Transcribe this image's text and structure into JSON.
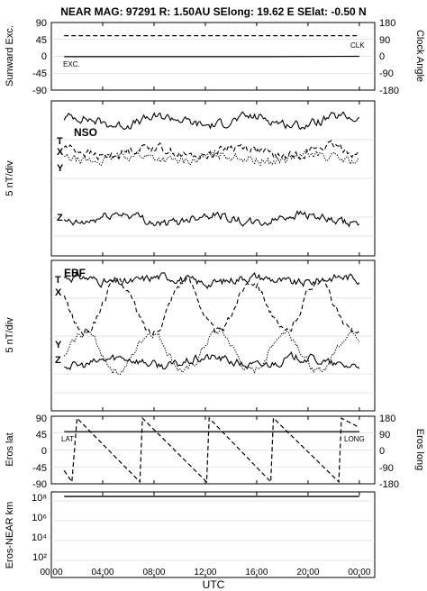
{
  "chart_data": [
    {
      "type": "line",
      "title": "NEAR MAG: 97291  R: 1.50AU  SElong:   19.62 E  SElat:   -0.50 N",
      "panel": "angles",
      "ylabel_left": "Sunward Exc.",
      "ylabel_right": "Clock Angle",
      "yticks_left": [
        "90",
        "45",
        "0",
        "-45",
        "-90"
      ],
      "yticks_right": [
        "180",
        "90",
        "0",
        "-90",
        "-180"
      ],
      "ylim": [
        -90,
        90
      ],
      "grid": true,
      "series": [
        {
          "name": "CLK",
          "style": "dashed",
          "x": [
            1,
            24
          ],
          "y": [
            55,
            55
          ]
        },
        {
          "name": "EXC.",
          "style": "solid",
          "x": [
            1,
            17,
            24
          ],
          "y": [
            -1,
            -1,
            0
          ]
        }
      ]
    },
    {
      "type": "line",
      "panel": "nso",
      "label": "NSO",
      "ylabel": "5 nT/div",
      "grid": true,
      "series": [
        {
          "name": "T",
          "style": "solid",
          "base": 22,
          "amp": 2.5
        },
        {
          "name": "X",
          "style": "dashed",
          "base": 13,
          "amp": 3.0
        },
        {
          "name": "Y",
          "style": "dotted",
          "base": 11,
          "amp": 2.0
        },
        {
          "name": "Z",
          "style": "solid",
          "base": -7,
          "amp": 3.0
        }
      ]
    },
    {
      "type": "line",
      "panel": "ebf",
      "label": "EBF",
      "ylabel": "5 nT/div",
      "grid": true,
      "series": [
        {
          "name": "T",
          "style": "solid",
          "base": 22,
          "amp": 2.0
        },
        {
          "name": "X",
          "style": "dashed",
          "base": 14,
          "amp": 8.0
        },
        {
          "name": "Y",
          "style": "dotted",
          "base": 0,
          "amp": 6.0
        },
        {
          "name": "Z",
          "style": "solid",
          "base": -3,
          "amp": 2.5
        }
      ]
    },
    {
      "type": "line",
      "panel": "eros",
      "ylabel_left": "Eros lat",
      "ylabel_right": "Eros long",
      "yticks_left": [
        "90",
        "45",
        "0",
        "-45",
        "-90"
      ],
      "yticks_right": [
        "180",
        "90",
        "0",
        "-90",
        "-180"
      ],
      "ylim": [
        -90,
        90
      ],
      "grid": true,
      "series": [
        {
          "name": "LAT",
          "style": "solid",
          "x": [
            1,
            24
          ],
          "y": [
            49,
            49
          ]
        },
        {
          "name": "LONG",
          "style": "dashed",
          "x": [
            1,
            1.6,
            2.0,
            6.9,
            7.1,
            12.1,
            12.3,
            17.1,
            17.3,
            22.4,
            22.6,
            24
          ],
          "y": [
            -55,
            -85,
            85,
            -85,
            85,
            -85,
            85,
            -85,
            85,
            -85,
            85,
            60
          ]
        }
      ]
    },
    {
      "type": "line",
      "panel": "distance",
      "ylabel": "Eros-NEAR km",
      "yscale": "log",
      "yticks": [
        "10⁸",
        "10⁶",
        "10⁴",
        "10²"
      ],
      "ylim_exp": [
        1,
        8.4
      ],
      "grid": true,
      "series": [
        {
          "name": "",
          "style": "solid",
          "x": [
            1,
            24
          ],
          "y_exp": [
            8.0,
            8.0
          ]
        }
      ]
    }
  ],
  "xaxis": {
    "label": "UTC",
    "ticks": [
      "00:00",
      "04:00",
      "08:00",
      "12:00",
      "16:00",
      "20:00",
      "00:00"
    ],
    "hours": [
      0,
      4,
      8,
      12,
      16,
      20,
      24
    ]
  }
}
